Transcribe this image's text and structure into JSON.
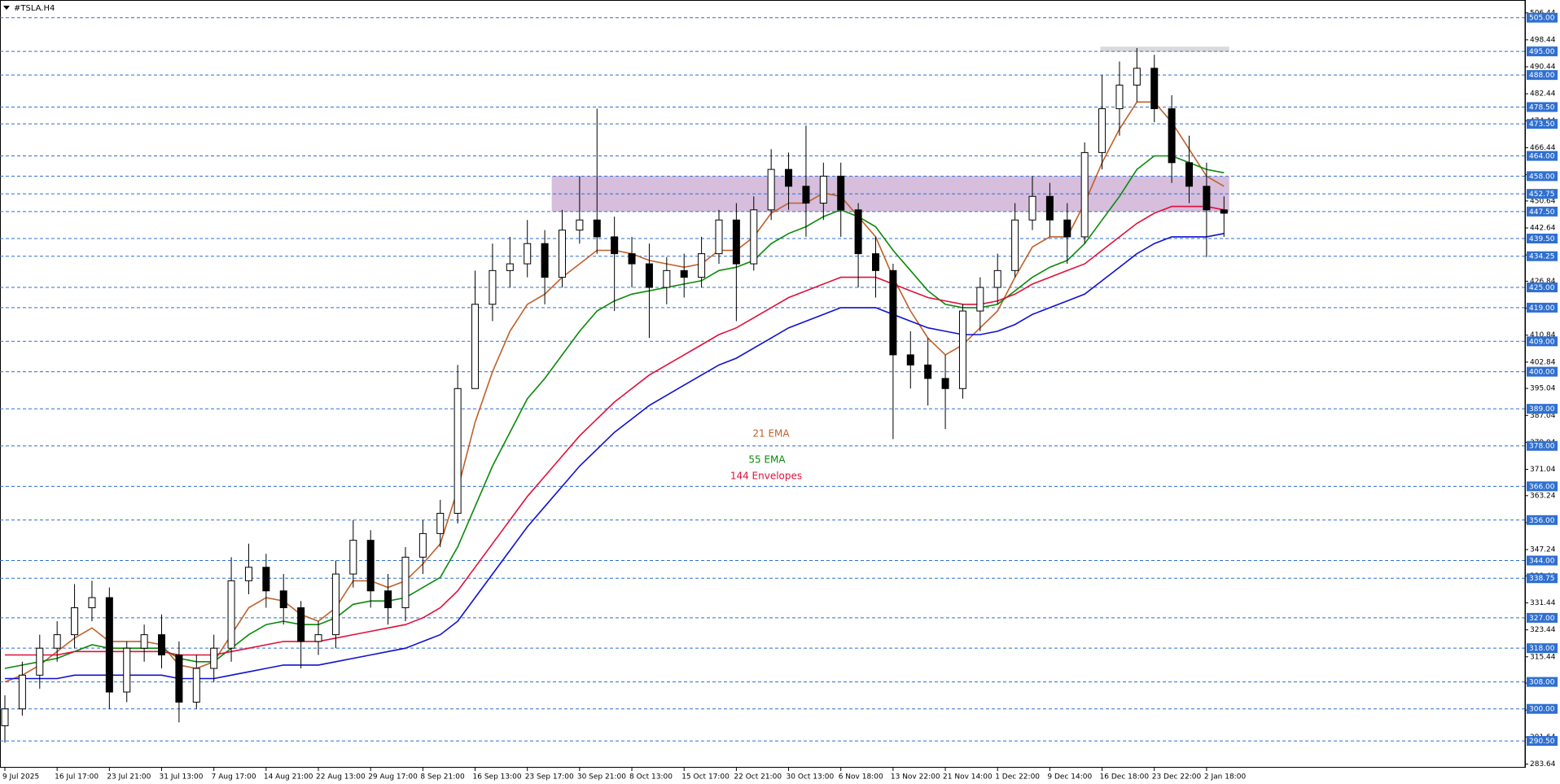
{
  "chart_data": {
    "type": "candlestick",
    "title": "#TSLA.H4",
    "categories": [
      "9 Jul 2025",
      null,
      null,
      "16 Jul 17:00",
      null,
      null,
      "23 Jul 21:00",
      null,
      null,
      "31 Jul 13:00",
      null,
      null,
      "7 Aug 17:00",
      null,
      null,
      "14 Aug 21:00",
      null,
      null,
      "22 Aug 13:00",
      null,
      null,
      "29 Aug 17:00",
      null,
      null,
      "8 Sep 21:00",
      null,
      null,
      "16 Sep 13:00",
      null,
      null,
      "23 Sep 17:00",
      null,
      null,
      "30 Sep 21:00",
      null,
      null,
      "8 Oct 13:00",
      null,
      null,
      "15 Oct 17:00",
      null,
      null,
      "22 Oct 21:00",
      null,
      null,
      "30 Oct 13:00",
      null,
      null,
      "6 Nov 18:00",
      null,
      null,
      "13 Nov 22:00",
      null,
      null,
      "21 Nov 14:00",
      null,
      null,
      "1 Dec 22:00",
      null,
      null,
      "9 Dec 14:00",
      null,
      null,
      "16 Dec 18:00",
      null,
      null,
      "23 Dec 22:00",
      null,
      null,
      "2 Jan 18:00",
      null
    ],
    "open": [
      295,
      300,
      310,
      318,
      322,
      330,
      333,
      305,
      318,
      322,
      316,
      302,
      312,
      318,
      338,
      342,
      335,
      330,
      320,
      322,
      340,
      350,
      335,
      330,
      345,
      352,
      358,
      395,
      420,
      430,
      432,
      438,
      428,
      442,
      445,
      440,
      435,
      432,
      425,
      430,
      428,
      435,
      445,
      432,
      448,
      460,
      455,
      450,
      458,
      448,
      435,
      430,
      405,
      402,
      398,
      395,
      418,
      425,
      430,
      445,
      452,
      445,
      440,
      465,
      478,
      485,
      490,
      478,
      462,
      455,
      448
    ],
    "high": [
      304,
      314,
      322,
      326,
      337,
      338,
      336,
      320,
      325,
      328,
      320,
      316,
      322,
      345,
      349,
      346,
      340,
      332,
      326,
      344,
      356,
      353,
      340,
      348,
      356,
      362,
      402,
      430,
      438,
      440,
      445,
      442,
      448,
      458,
      478,
      446,
      440,
      438,
      434,
      435,
      440,
      448,
      450,
      452,
      466,
      465,
      473,
      462,
      462,
      450,
      440,
      432,
      412,
      410,
      405,
      420,
      428,
      435,
      450,
      458,
      456,
      450,
      468,
      488,
      492,
      496,
      494,
      482,
      470,
      462,
      452
    ],
    "low": [
      290,
      298,
      306,
      314,
      318,
      326,
      300,
      302,
      314,
      312,
      296,
      300,
      308,
      314,
      334,
      330,
      325,
      312,
      316,
      318,
      336,
      330,
      325,
      326,
      340,
      348,
      355,
      395,
      415,
      425,
      428,
      420,
      425,
      438,
      435,
      418,
      425,
      410,
      420,
      422,
      425,
      432,
      415,
      430,
      445,
      448,
      440,
      445,
      440,
      425,
      422,
      380,
      395,
      390,
      383,
      392,
      412,
      420,
      428,
      442,
      440,
      432,
      438,
      460,
      470,
      480,
      474,
      456,
      450,
      434,
      440
    ],
    "close": [
      300,
      310,
      318,
      322,
      330,
      333,
      305,
      318,
      322,
      316,
      302,
      312,
      318,
      338,
      342,
      335,
      330,
      320,
      322,
      340,
      350,
      335,
      330,
      345,
      352,
      358,
      395,
      420,
      430,
      432,
      438,
      428,
      442,
      445,
      440,
      435,
      432,
      425,
      430,
      428,
      435,
      445,
      432,
      448,
      460,
      455,
      450,
      458,
      448,
      435,
      430,
      405,
      402,
      398,
      395,
      418,
      425,
      430,
      445,
      452,
      445,
      440,
      465,
      478,
      485,
      490,
      478,
      462,
      455,
      448,
      447
    ],
    "color_up": "#ffffff",
    "color_down": "#000000",
    "series": [
      {
        "name": "21 EMA",
        "color": "#c0602a",
        "values": [
          308,
          310,
          313,
          317,
          321,
          324,
          320,
          320,
          320,
          319,
          313,
          312,
          314,
          322,
          330,
          333,
          332,
          328,
          326,
          330,
          338,
          338,
          336,
          338,
          343,
          349,
          365,
          385,
          400,
          412,
          420,
          423,
          428,
          432,
          436,
          436,
          435,
          433,
          432,
          431,
          432,
          436,
          436,
          440,
          447,
          450,
          450,
          453,
          452,
          446,
          440,
          428,
          418,
          410,
          405,
          408,
          413,
          418,
          428,
          437,
          440,
          440,
          450,
          462,
          472,
          480,
          480,
          474,
          466,
          458,
          455
        ]
      },
      {
        "name": "55 EMA",
        "color": "#0a8a0a",
        "values": [
          312,
          313,
          314,
          315,
          317,
          319,
          318,
          318,
          318,
          318,
          315,
          314,
          314,
          318,
          322,
          325,
          326,
          325,
          325,
          327,
          331,
          332,
          332,
          333,
          336,
          339,
          348,
          360,
          372,
          382,
          392,
          398,
          405,
          412,
          418,
          421,
          423,
          424,
          425,
          426,
          427,
          430,
          431,
          433,
          438,
          441,
          443,
          446,
          448,
          446,
          443,
          436,
          430,
          424,
          420,
          419,
          419,
          420,
          424,
          428,
          431,
          433,
          438,
          445,
          452,
          460,
          464,
          464,
          462,
          460,
          459
        ]
      },
      {
        "name": "144 Envelopes",
        "color": "#e0103a",
        "lower_color": "#1010d0",
        "values": [
          316,
          316,
          316,
          316,
          317,
          317,
          317,
          317,
          317,
          317,
          316,
          316,
          316,
          317,
          318,
          319,
          320,
          320,
          320,
          321,
          322,
          323,
          324,
          325,
          327,
          330,
          335,
          342,
          349,
          356,
          363,
          369,
          375,
          381,
          386,
          391,
          395,
          399,
          402,
          405,
          408,
          411,
          413,
          416,
          419,
          422,
          424,
          426,
          428,
          428,
          428,
          426,
          424,
          422,
          421,
          420,
          420,
          421,
          423,
          426,
          428,
          430,
          432,
          436,
          440,
          444,
          447,
          449,
          449,
          449,
          448
        ],
        "lower": [
          309,
          309,
          309,
          309,
          310,
          310,
          310,
          310,
          310,
          310,
          309,
          309,
          309,
          310,
          311,
          312,
          313,
          313,
          313,
          314,
          315,
          316,
          317,
          318,
          320,
          322,
          326,
          333,
          340,
          347,
          354,
          360,
          366,
          372,
          377,
          382,
          386,
          390,
          393,
          396,
          399,
          402,
          404,
          407,
          410,
          413,
          415,
          417,
          419,
          419,
          419,
          417,
          415,
          413,
          412,
          411,
          411,
          412,
          414,
          417,
          419,
          421,
          423,
          427,
          431,
          435,
          438,
          440,
          440,
          440,
          441
        ]
      }
    ],
    "levels": [
      {
        "value": 505,
        "label": "505.00"
      },
      {
        "value": 495,
        "label": "495.00"
      },
      {
        "value": 488,
        "label": "488.00"
      },
      {
        "value": 478.5,
        "label": "478.50"
      },
      {
        "value": 473.5,
        "label": "473.50"
      },
      {
        "value": 464,
        "label": "464.00"
      },
      {
        "value": 458,
        "label": "458.00"
      },
      {
        "value": 452.75,
        "label": "452.75"
      },
      {
        "value": 447.5,
        "label": "447.50"
      },
      {
        "value": 439.5,
        "label": "439.50"
      },
      {
        "value": 434.25,
        "label": "434.25"
      },
      {
        "value": 425,
        "label": "425.00"
      },
      {
        "value": 419,
        "label": "419.00"
      },
      {
        "value": 409,
        "label": "409.00"
      },
      {
        "value": 400,
        "label": "400.00"
      },
      {
        "value": 389,
        "label": "389.00"
      },
      {
        "value": 378,
        "label": "378.00"
      },
      {
        "value": 366,
        "label": "366.00"
      },
      {
        "value": 356,
        "label": "356.00"
      },
      {
        "value": 344,
        "label": "344.00"
      },
      {
        "value": 338.75,
        "label": "338.75"
      },
      {
        "value": 327,
        "label": "327.00"
      },
      {
        "value": 318,
        "label": "318.00"
      },
      {
        "value": 308,
        "label": "308.00"
      },
      {
        "value": 300,
        "label": "300.00"
      },
      {
        "value": 290.5,
        "label": "290.50"
      }
    ],
    "level_color": "#2f6fd0",
    "zones": [
      {
        "ylim": [
          447.5,
          458
        ],
        "xlim": [
          31.4,
          70.3
        ],
        "color": "#cfb3d6"
      },
      {
        "ylim": [
          494.9,
          496.4
        ],
        "xlim": [
          62.9,
          70.3
        ],
        "color": "#d4d4d4"
      }
    ],
    "ylim": [
      282.55,
      509.28
    ],
    "yticks": [
      506.44,
      498.44,
      490.44,
      482.44,
      474.44,
      466.44,
      458.44,
      450.64,
      442.64,
      434.64,
      426.84,
      418.84,
      410.84,
      402.84,
      395.04,
      387.04,
      379.04,
      371.04,
      363.24,
      355.24,
      347.24,
      339.44,
      331.44,
      323.44,
      315.44,
      307.64,
      299.64,
      291.64,
      283.64
    ]
  }
}
